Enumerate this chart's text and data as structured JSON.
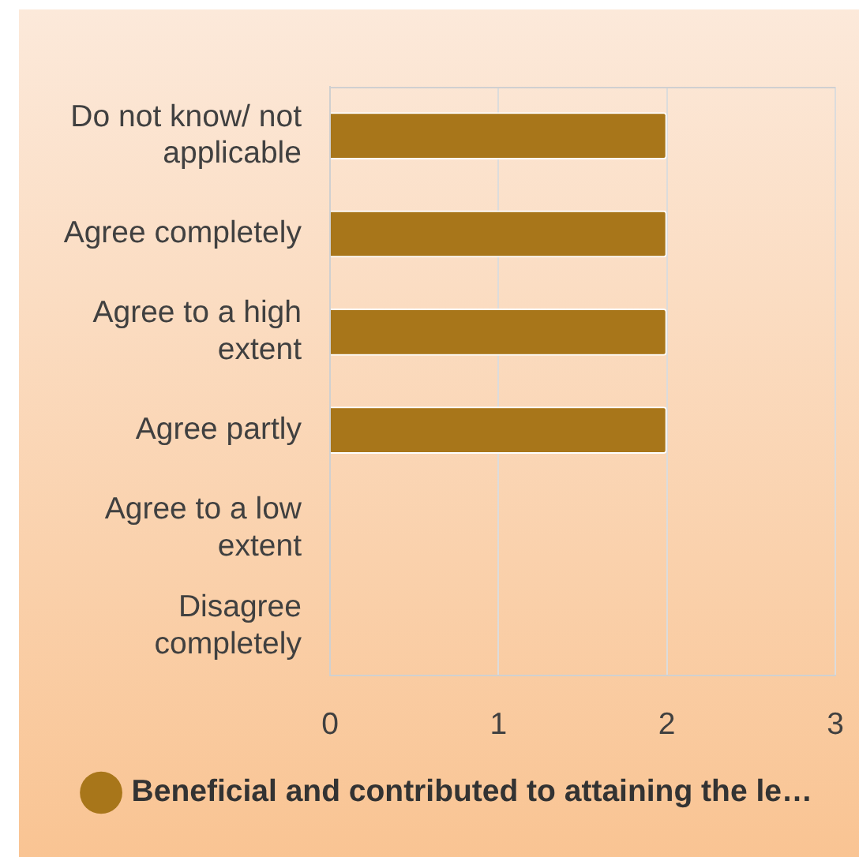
{
  "chart_data": {
    "type": "bar",
    "orientation": "horizontal",
    "categories": [
      "Do not know/ not applicable",
      "Agree completely",
      "Agree to a high extent",
      "Agree partly",
      "Agree to a low extent",
      "Disagree completely"
    ],
    "series": [
      {
        "name": "Beneficial and contributed to attaining the le…",
        "color": "#a8761a",
        "values": [
          2,
          2,
          2,
          2,
          0,
          0
        ]
      }
    ],
    "xlim": [
      0,
      3
    ],
    "xticks": [
      0,
      1,
      2,
      3
    ],
    "grid": "x",
    "legend": "bottom"
  }
}
